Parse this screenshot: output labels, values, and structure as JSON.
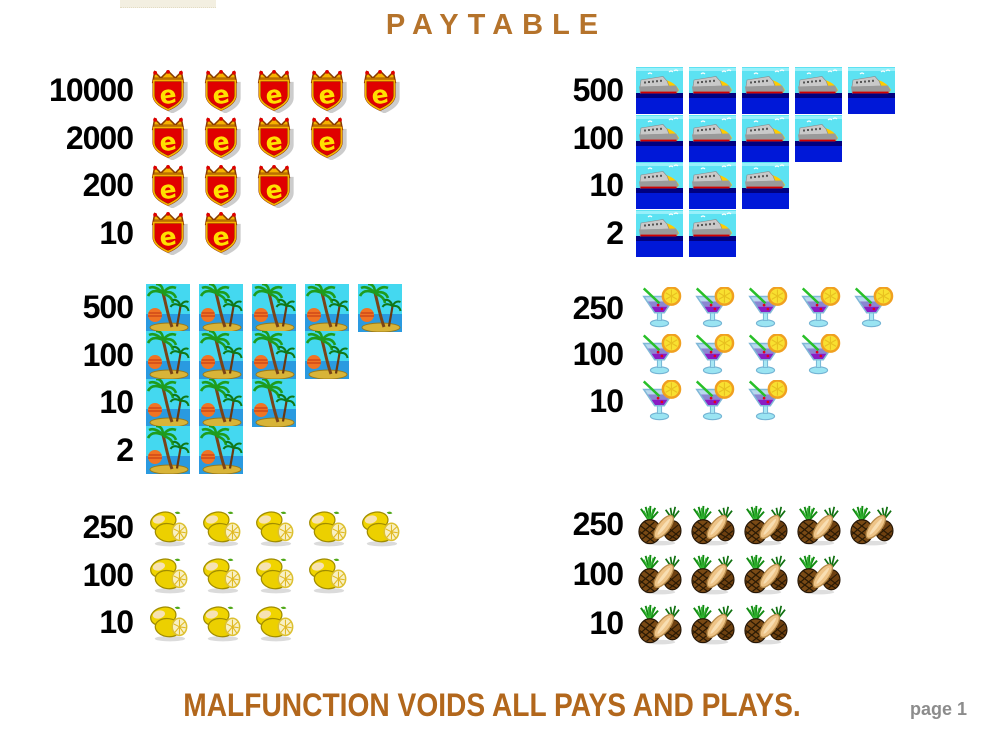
{
  "title": "PAYTABLE",
  "footer": {
    "disclaimer": "MALFUNCTION VOIDS ALL PAYS AND PLAYS.",
    "page_label": "page 1"
  },
  "colors": {
    "background": "#ffffff",
    "title_text": "#b5732b",
    "disclaimer_text": "#b2671c",
    "payout_value_text": "#000000",
    "page_label_text": "#8c8c8c"
  },
  "paytable": {
    "groups": [
      {
        "symbol": "shield-e-logo",
        "rows": [
          {
            "count": 5,
            "value": "10000"
          },
          {
            "count": 4,
            "value": "2000"
          },
          {
            "count": 3,
            "value": "200"
          },
          {
            "count": 2,
            "value": "10"
          }
        ]
      },
      {
        "symbol": "cruise-ship",
        "rows": [
          {
            "count": 5,
            "value": "500"
          },
          {
            "count": 4,
            "value": "100"
          },
          {
            "count": 3,
            "value": "10"
          },
          {
            "count": 2,
            "value": "2"
          }
        ]
      },
      {
        "symbol": "palm-island",
        "rows": [
          {
            "count": 5,
            "value": "500"
          },
          {
            "count": 4,
            "value": "100"
          },
          {
            "count": 3,
            "value": "10"
          },
          {
            "count": 2,
            "value": "2"
          }
        ]
      },
      {
        "symbol": "cocktail",
        "rows": [
          {
            "count": 5,
            "value": "250"
          },
          {
            "count": 4,
            "value": "100"
          },
          {
            "count": 3,
            "value": "10"
          }
        ]
      },
      {
        "symbol": "lemons",
        "rows": [
          {
            "count": 5,
            "value": "250"
          },
          {
            "count": 4,
            "value": "100"
          },
          {
            "count": 3,
            "value": "10"
          }
        ]
      },
      {
        "symbol": "pineapple",
        "rows": [
          {
            "count": 5,
            "value": "250"
          },
          {
            "count": 4,
            "value": "100"
          },
          {
            "count": 3,
            "value": "10"
          }
        ]
      }
    ]
  }
}
